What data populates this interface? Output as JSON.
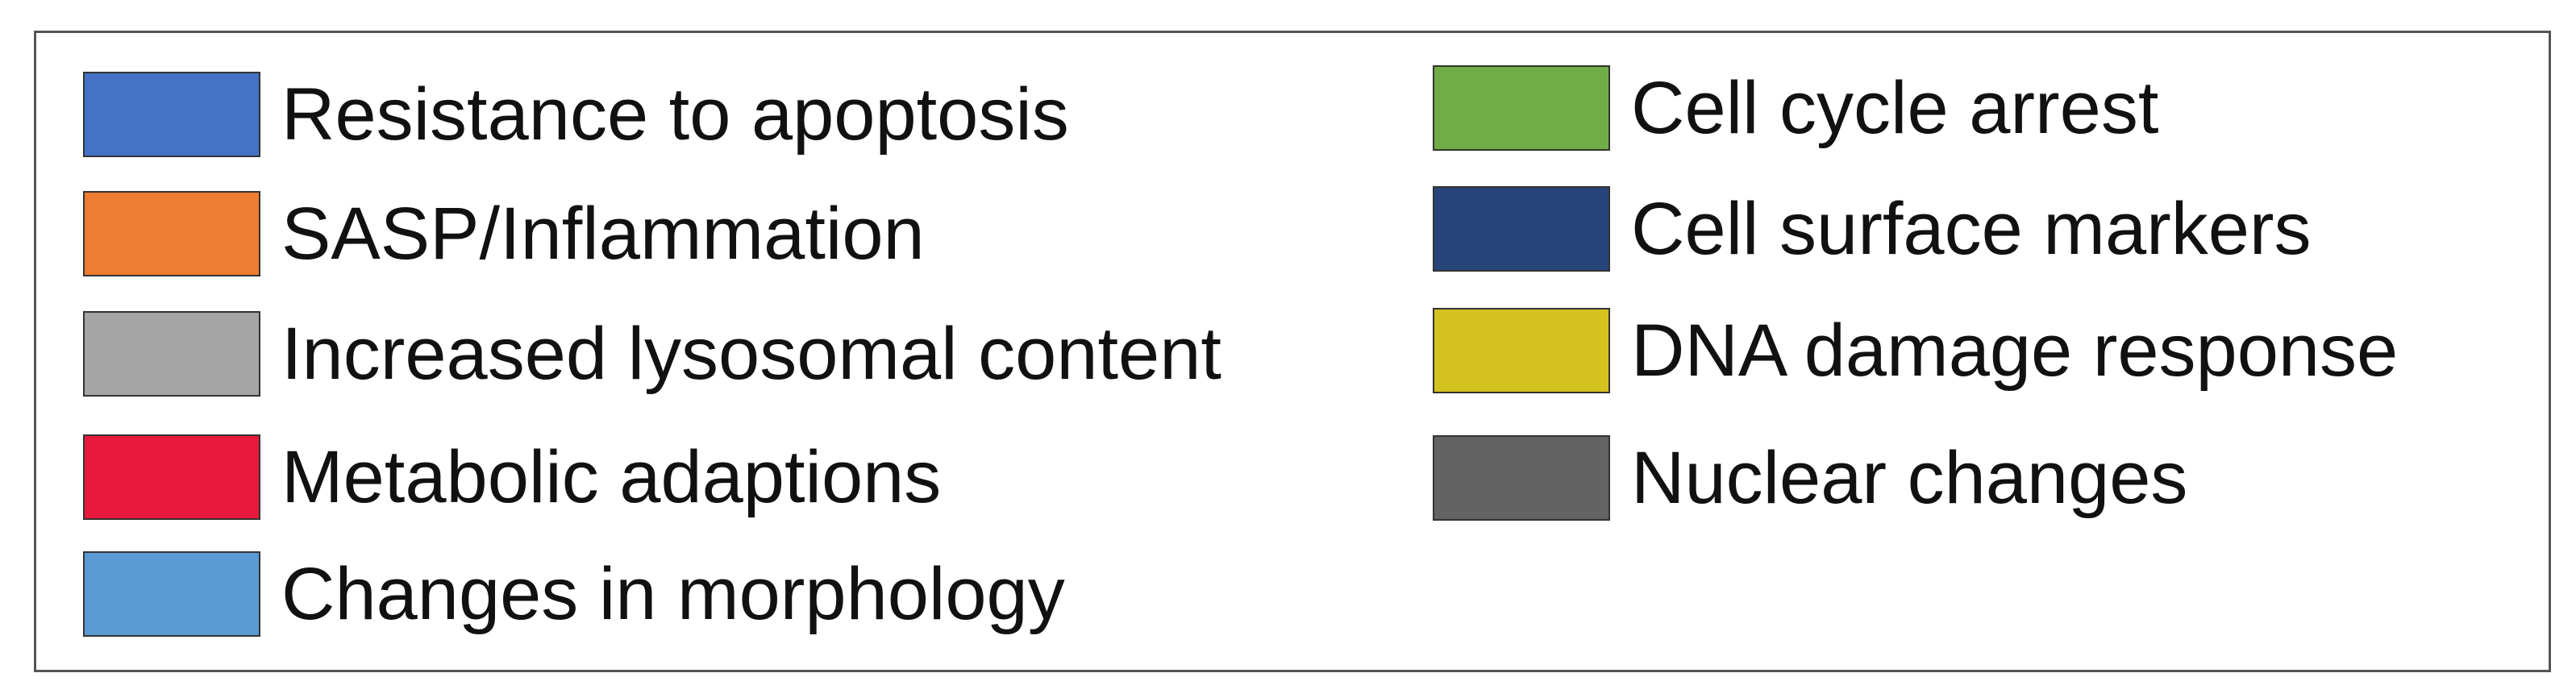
{
  "legend": {
    "items": [
      {
        "label": "Resistance to apoptosis",
        "color": "#4472c4"
      },
      {
        "label": "SASP/Inflammation",
        "color": "#ed7d31"
      },
      {
        "label": "Increased lysosomal content",
        "color": "#a5a5a5"
      },
      {
        "label": "Metabolic adaptions",
        "color": "#e8193c"
      },
      {
        "label": "Changes in morphology",
        "color": "#5b9bd5"
      },
      {
        "label": "Cell cycle arrest",
        "color": "#70ad47"
      },
      {
        "label": "Cell surface markers",
        "color": "#264478"
      },
      {
        "label": "DNA damage response",
        "color": "#d4c21f"
      },
      {
        "label": "Nuclear changes",
        "color": "#636363"
      }
    ]
  }
}
